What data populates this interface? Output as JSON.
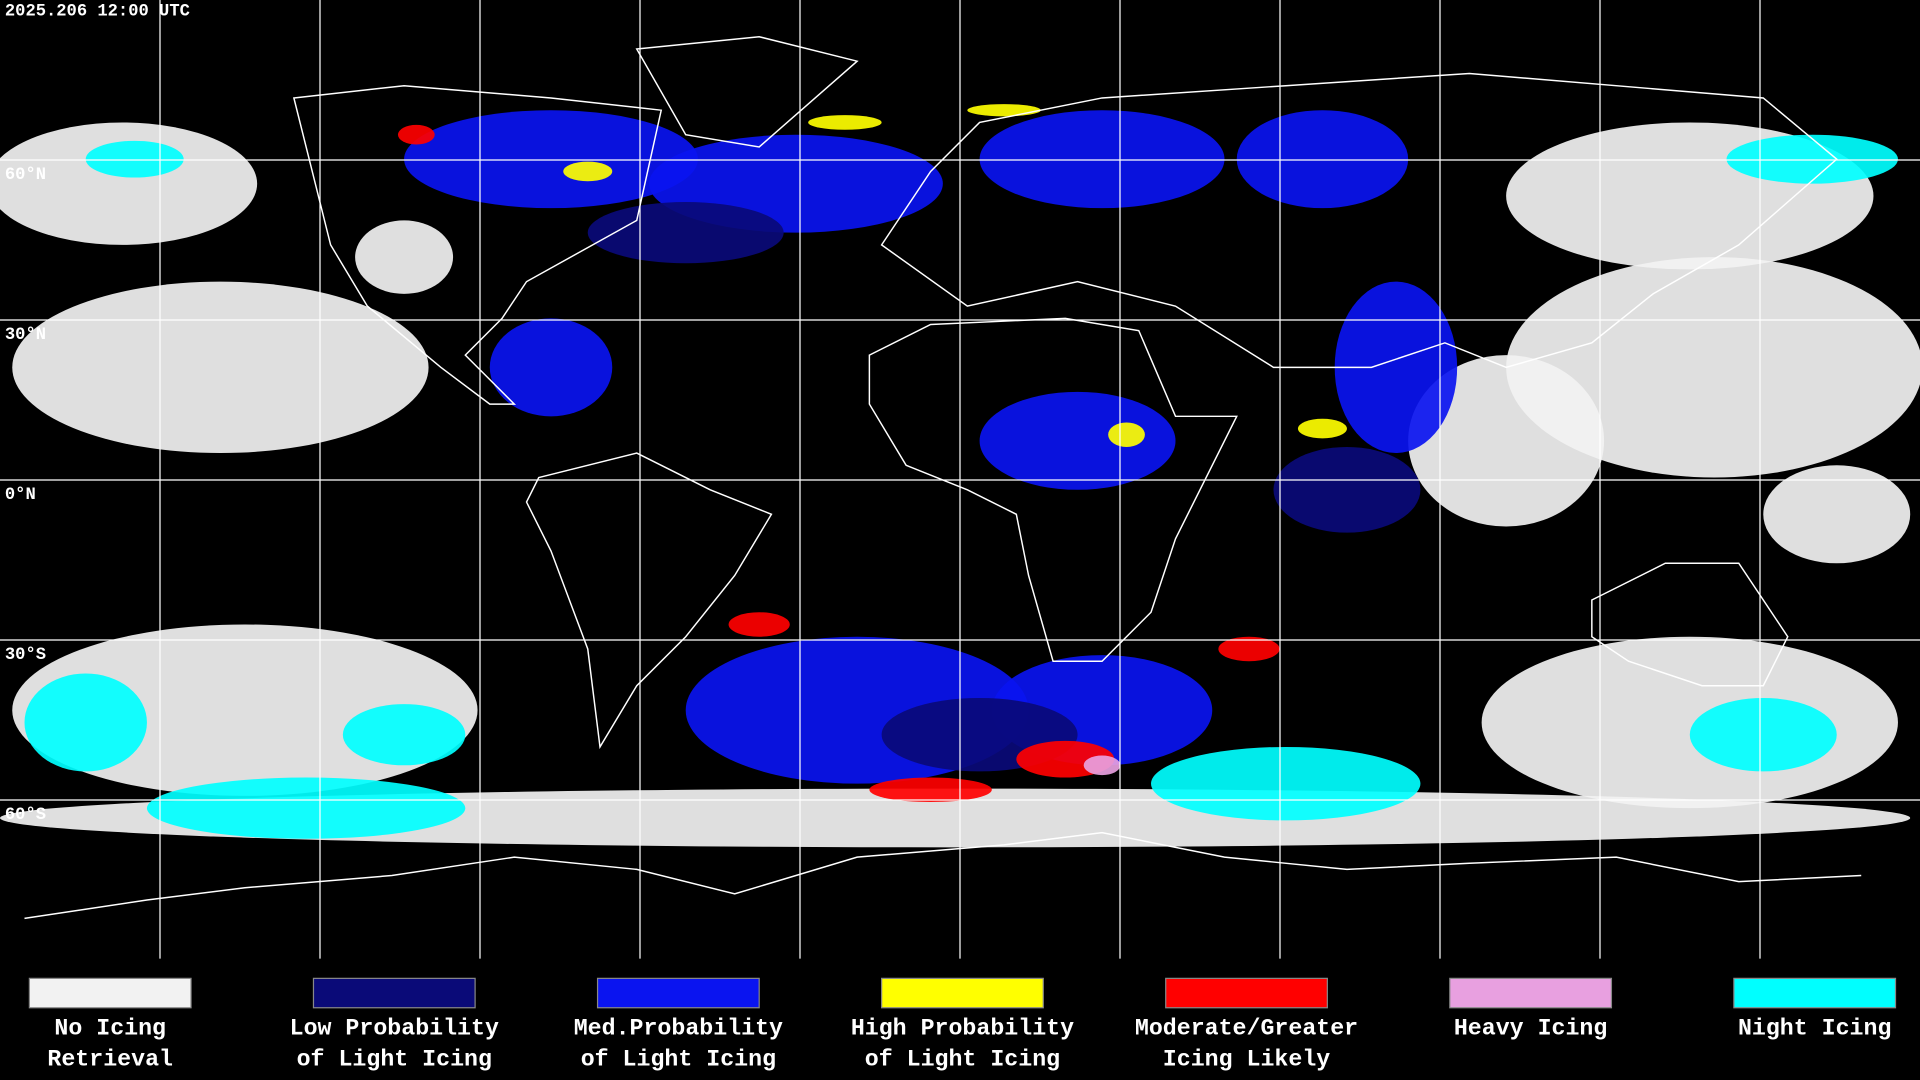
{
  "timestamp": "2025.206 12:00 UTC",
  "latitude_labels": [
    "60°N",
    "30°N",
    "0°N",
    "30°S",
    "60°S"
  ],
  "legend": [
    {
      "lines": [
        "No Icing",
        "Retrieval"
      ],
      "color": "#f2f2f2"
    },
    {
      "lines": [
        "Low Probability",
        "of Light Icing"
      ],
      "color": "#0a0a78"
    },
    {
      "lines": [
        "Med.Probability",
        "of Light Icing"
      ],
      "color": "#0a14f0"
    },
    {
      "lines": [
        "High Probability",
        "of Light Icing"
      ],
      "color": "#ffff00"
    },
    {
      "lines": [
        "Moderate/Greater",
        "Icing Likely"
      ],
      "color": "#ff0000"
    },
    {
      "lines": [
        "Heavy Icing"
      ],
      "color": "#e8a0e0"
    },
    {
      "lines": [
        "Night Icing"
      ],
      "color": "#00ffff"
    }
  ]
}
